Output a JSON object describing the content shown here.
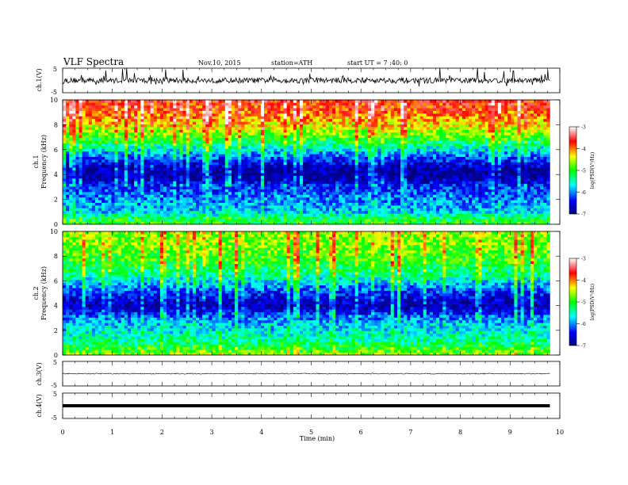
{
  "header": {
    "title": "VLF  Spectra",
    "date": "Nov.10, 2015",
    "station": "station=ATH",
    "start": "start  UT  =   7 :40: 0"
  },
  "chart_data": [
    {
      "type": "line",
      "id": "ch1",
      "ylabel": "ch.1(V)",
      "ylim": [
        -5,
        5
      ],
      "yticks": [
        "5",
        "-5"
      ],
      "baseline": 0,
      "xlim": [
        0,
        10
      ],
      "data_end": 9.8,
      "noise": "high"
    },
    {
      "type": "heatmap",
      "id": "spec1",
      "ylabel": [
        "ch.1",
        "Frequency (kHz)"
      ],
      "yticks": [
        "0",
        "2",
        "4",
        "6",
        "8",
        "10"
      ],
      "ylim": [
        0,
        10
      ],
      "xlim": [
        0,
        10
      ],
      "data_end": 9.8,
      "colorbar": {
        "label": "log(PSD(V²/Hz)",
        "ticks": [
          "-3",
          "-4",
          "-5",
          "-6",
          "-7"
        ],
        "range": [
          -7,
          -3
        ]
      },
      "profile_freq_khz": [
        0,
        0.5,
        1,
        1.5,
        2,
        2.5,
        3,
        3.5,
        4,
        4.5,
        5,
        5.5,
        6,
        6.5,
        7,
        7.5,
        8,
        8.5,
        9,
        9.5,
        10
      ],
      "profile_log_psd": [
        -5.0,
        -5.2,
        -5.8,
        -5.9,
        -6.0,
        -6.2,
        -6.3,
        -6.7,
        -6.9,
        -6.8,
        -6.5,
        -6.1,
        -5.7,
        -5.3,
        -4.9,
        -4.6,
        -4.3,
        -4.1,
        -3.9,
        -3.8,
        -3.7
      ]
    },
    {
      "type": "heatmap",
      "id": "spec2",
      "ylabel": [
        "ch.2",
        "Frequency (kHz)"
      ],
      "yticks": [
        "0",
        "2",
        "4",
        "6",
        "8",
        "10"
      ],
      "ylim": [
        0,
        10
      ],
      "xlim": [
        0,
        10
      ],
      "data_end": 9.8,
      "colorbar": {
        "label": "log(PSD(V²/Hz)",
        "ticks": [
          "-3",
          "-4",
          "-5",
          "-6",
          "-7"
        ],
        "range": [
          -7,
          -3
        ]
      },
      "profile_freq_khz": [
        0,
        0.5,
        1,
        1.5,
        2,
        2.5,
        3,
        3.5,
        4,
        4.5,
        5,
        5.5,
        6,
        6.5,
        7,
        7.5,
        8,
        8.5,
        9,
        9.5,
        10
      ],
      "profile_log_psd": [
        -4.6,
        -5.0,
        -5.3,
        -5.5,
        -5.7,
        -5.8,
        -6.0,
        -6.5,
        -6.8,
        -6.6,
        -6.4,
        -6.0,
        -5.7,
        -5.4,
        -5.2,
        -5.0,
        -4.9,
        -4.8,
        -4.7,
        -4.7,
        -4.6
      ]
    },
    {
      "type": "line",
      "id": "ch3",
      "ylabel": "ch.3(V)",
      "ylim": [
        -5,
        5
      ],
      "yticks": [
        "5",
        "-5"
      ],
      "baseline": 0,
      "xlim": [
        0,
        10
      ],
      "data_end": 9.8,
      "noise": "low"
    },
    {
      "type": "line",
      "id": "ch4",
      "ylabel": "ch.4(V)",
      "ylim": [
        -5,
        5
      ],
      "yticks": [
        "5",
        "-5"
      ],
      "baseline": 0,
      "xlim": [
        0,
        10
      ],
      "data_end": 9.8,
      "noise": "flat"
    }
  ],
  "x_axis": {
    "label": "Time  (min)",
    "ticks": [
      "0",
      "1",
      "2",
      "3",
      "4",
      "5",
      "6",
      "7",
      "8",
      "9",
      "10"
    ]
  }
}
